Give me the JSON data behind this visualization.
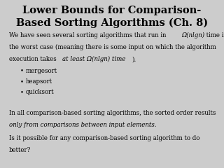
{
  "title_line1": "Lower Bounds for Comparison-",
  "title_line2": "Based Sorting Algorithms (Ch. 8)",
  "background_color": "#cccccc",
  "title_fontsize": 10.5,
  "title_fontweight": "bold",
  "body_fontsize": 6.2,
  "bullet_items": [
    "mergesort",
    "heapsort",
    "quicksort"
  ],
  "p1_a": "We have seen several sorting algorithms that run in ",
  "p1_b": "Ω(nlgn)",
  "p1_c": " time in",
  "p1_d": "the worst case (meaning there is some input on which the algorithm",
  "p1_e": "execution takes ",
  "p1_f": "at least Ω(nlgn) time",
  "p1_g": ").",
  "p2_a": "In all comparison-based sorting algorithms, the sorted order results",
  "p2_b": "only from comparisons between input elements.",
  "p3_a": "Is it possible for any comparison-based sorting algorithm to do",
  "p3_b": "better?"
}
